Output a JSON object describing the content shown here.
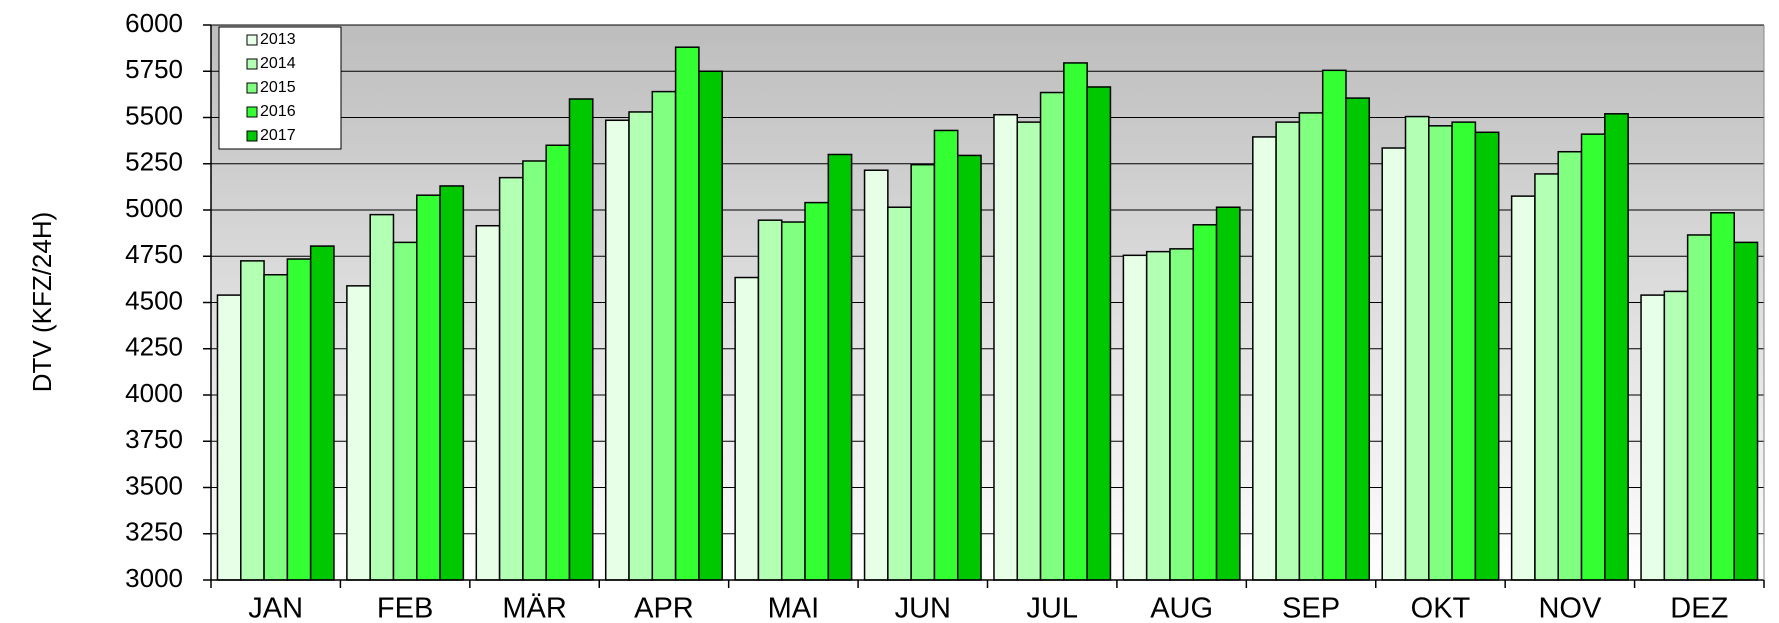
{
  "chart_data": {
    "type": "bar",
    "y_label": "DTV (KFZ/24H)",
    "categories": [
      "JAN",
      "FEB",
      "MÄR",
      "APR",
      "MAI",
      "JUN",
      "JUL",
      "AUG",
      "SEP",
      "OKT",
      "NOV",
      "DEZ"
    ],
    "series": [
      {
        "name": "2013",
        "color": "#e6ffe6",
        "values": [
          4540,
          4590,
          4915,
          5485,
          4635,
          5215,
          5515,
          4755,
          5395,
          5335,
          5075,
          4540
        ]
      },
      {
        "name": "2014",
        "color": "#b3ffb3",
        "values": [
          4725,
          4975,
          5175,
          5530,
          4945,
          5015,
          5475,
          4775,
          5475,
          5505,
          5195,
          4560
        ]
      },
      {
        "name": "2015",
        "color": "#80ff80",
        "values": [
          4650,
          4825,
          5265,
          5640,
          4935,
          5245,
          5635,
          4790,
          5525,
          5455,
          5315,
          4865
        ]
      },
      {
        "name": "2016",
        "color": "#33ff33",
        "values": [
          4735,
          5080,
          5350,
          5880,
          5040,
          5430,
          5795,
          4920,
          5755,
          5475,
          5410,
          4985
        ]
      },
      {
        "name": "2017",
        "color": "#00c800",
        "values": [
          4805,
          5130,
          5600,
          5750,
          5300,
          5295,
          5665,
          5015,
          5605,
          5420,
          5520,
          4825
        ]
      }
    ],
    "ylim": [
      3000,
      6000
    ],
    "yticks": [
      3000,
      3250,
      3500,
      3750,
      4000,
      4250,
      4500,
      4750,
      5000,
      5250,
      5500,
      5750,
      6000
    ],
    "grid": true,
    "legend": "top-left"
  }
}
